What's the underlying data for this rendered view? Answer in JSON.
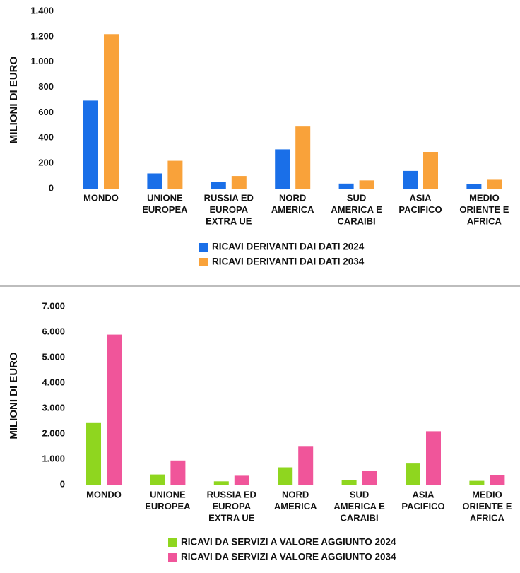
{
  "chart_data": [
    {
      "type": "bar",
      "ylabel": "MILIONI DI EURO",
      "ylim": [
        0,
        1400
      ],
      "yticks": [
        0,
        200,
        400,
        600,
        800,
        1000,
        1200,
        1400
      ],
      "ytick_labels": [
        "0",
        "200",
        "400",
        "600",
        "800",
        "1.000",
        "1.200",
        "1.400"
      ],
      "categories": [
        [
          "MONDO"
        ],
        [
          "UNIONE",
          "EUROPEA"
        ],
        [
          "RUSSIA ED",
          "EUROPA",
          "EXTRA UE"
        ],
        [
          "NORD",
          "AMERICA"
        ],
        [
          "SUD",
          "AMERICA E",
          "CARAIBI"
        ],
        [
          "ASIA",
          "PACIFICO"
        ],
        [
          "MEDIO",
          "ORIENTE E",
          "AFRICA"
        ]
      ],
      "series": [
        {
          "name": "RICAVI DERIVANTI DAI DATI 2024",
          "color": "#1a6fe8",
          "values": [
            695,
            120,
            55,
            310,
            40,
            140,
            35
          ]
        },
        {
          "name": "RICAVI DERIVANTI DAI DATI 2034",
          "color": "#f9a23a",
          "values": [
            1220,
            220,
            100,
            490,
            65,
            290,
            70
          ]
        }
      ],
      "legend_position": "bottom-center",
      "grid": false
    },
    {
      "type": "bar",
      "ylabel": "MILIONI DI EURO",
      "ylim": [
        0,
        7000
      ],
      "yticks": [
        0,
        1000,
        2000,
        3000,
        4000,
        5000,
        6000,
        7000
      ],
      "ytick_labels": [
        "0",
        "1.000",
        "2.000",
        "3.000",
        "4.000",
        "5.000",
        "6.000",
        "7.000"
      ],
      "categories": [
        [
          "MONDO"
        ],
        [
          "UNIONE",
          "EUROPEA"
        ],
        [
          "RUSSIA ED",
          "EUROPA",
          "EXTRA UE"
        ],
        [
          "NORD",
          "AMERICA"
        ],
        [
          "SUD",
          "AMERICA E",
          "CARAIBI"
        ],
        [
          "ASIA",
          "PACIFICO"
        ],
        [
          "MEDIO",
          "ORIENTE E",
          "AFRICA"
        ]
      ],
      "series": [
        {
          "name": "RICAVI DA SERVIZI A VALORE AGGIUNTO 2024",
          "color": "#8fd61f",
          "values": [
            2450,
            400,
            130,
            680,
            180,
            830,
            150
          ]
        },
        {
          "name": "RICAVI DA SERVIZI A VALORE AGGIUNTO 2034",
          "color": "#f0559a",
          "values": [
            5900,
            950,
            350,
            1520,
            550,
            2100,
            380
          ]
        }
      ],
      "legend_position": "bottom-center",
      "grid": false
    }
  ],
  "separator_color": "#bdbdbd"
}
